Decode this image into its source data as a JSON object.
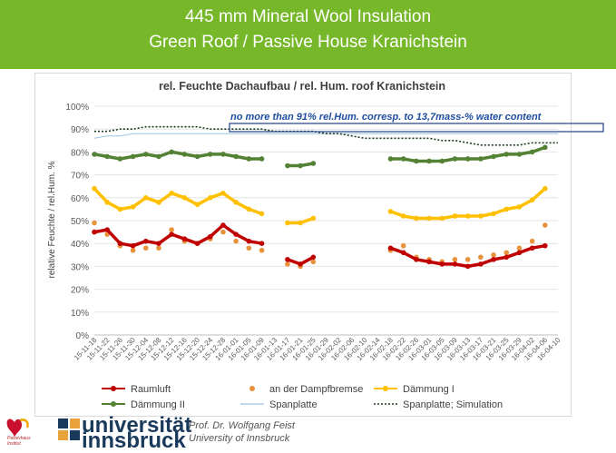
{
  "banner": {
    "line1": "445 mm Mineral Wool Insulation",
    "line2": "Green Roof / Passive House Kranichstein"
  },
  "footer": {
    "uni_line1": "universität",
    "uni_line2": "innsbruck",
    "author": "Prof. Dr. Wolfgang Feist",
    "affiliation": "University of Innsbruck",
    "logo_caption_1": "Passivhaus",
    "logo_caption_2": "Institut"
  },
  "chart_data": {
    "type": "line",
    "title": "rel. Feuchte Dachaufbau / rel. Hum. roof Kranichstein",
    "ylabel": "relative Feuchte / rel.Hum. %",
    "xlabel": "",
    "ylim": [
      0,
      100
    ],
    "yticks": [
      "0%",
      "10%",
      "20%",
      "30%",
      "40%",
      "50%",
      "60%",
      "70%",
      "80%",
      "90%",
      "100%"
    ],
    "grid": true,
    "legend_position": "bottom",
    "annotation": "no more than 91% rel.Hum. corresp. to 13,7mass-% water content",
    "x_dates": [
      "15-11-18",
      "15-11-22",
      "15-11-26",
      "15-11-30",
      "15-12-04",
      "15-12-08",
      "15-12-12",
      "15-12-16",
      "15-12-20",
      "15-12-24",
      "15-12-28",
      "16-01-01",
      "16-01-05",
      "16-01-09",
      "16-01-13",
      "16-01-17",
      "16-01-21",
      "16-01-25",
      "16-01-29",
      "16-02-02",
      "16-02-06",
      "16-02-10",
      "16-02-14",
      "16-02-18",
      "16-02-22",
      "16-02-26",
      "16-03-01",
      "16-03-05",
      "16-03-09",
      "16-03-13",
      "16-03-17",
      "16-03-21",
      "16-03-25",
      "16-03-29",
      "16-04-02",
      "16-04-06",
      "16-04-10"
    ],
    "series": [
      {
        "name": "Raumluft",
        "color": "#c00000",
        "style": "solid-markers",
        "values": [
          45,
          46,
          40,
          39,
          41,
          40,
          44,
          42,
          40,
          43,
          48,
          44,
          41,
          40,
          null,
          33,
          31,
          34,
          null,
          null,
          null,
          null,
          null,
          38,
          36,
          33,
          32,
          31,
          31,
          30,
          31,
          33,
          34,
          36,
          38,
          39,
          null
        ]
      },
      {
        "name": "an der Dampfbremse",
        "color": "#e8923c",
        "style": "markers-only",
        "values": [
          49,
          44,
          39,
          37,
          38,
          38,
          46,
          41,
          40,
          42,
          45,
          41,
          38,
          37,
          null,
          31,
          30,
          32,
          null,
          null,
          null,
          null,
          null,
          37,
          39,
          34,
          33,
          32,
          33,
          33,
          34,
          35,
          36,
          38,
          41,
          48,
          null
        ]
      },
      {
        "name": "Dämmung I",
        "color": "#ffc000",
        "style": "solid-markers",
        "values": [
          64,
          58,
          55,
          56,
          60,
          58,
          62,
          60,
          57,
          60,
          62,
          58,
          55,
          53,
          null,
          49,
          49,
          51,
          null,
          null,
          null,
          null,
          null,
          54,
          52,
          51,
          51,
          51,
          52,
          52,
          52,
          53,
          55,
          56,
          59,
          64,
          null
        ]
      },
      {
        "name": "Dämmung II",
        "color": "#548235",
        "style": "solid-markers",
        "values": [
          79,
          78,
          77,
          78,
          79,
          78,
          80,
          79,
          78,
          79,
          79,
          78,
          77,
          77,
          null,
          74,
          74,
          75,
          null,
          null,
          null,
          null,
          null,
          77,
          77,
          76,
          76,
          76,
          77,
          77,
          77,
          78,
          79,
          79,
          80,
          82,
          null
        ]
      },
      {
        "name": "Spanplatte",
        "color": "#9dc3e6",
        "style": "solid-thin",
        "values": [
          86,
          87,
          87,
          88,
          88,
          88,
          88,
          88,
          88,
          88,
          88,
          88,
          88,
          88,
          88,
          88,
          88,
          88,
          88,
          88,
          88,
          88,
          88,
          88,
          88,
          88,
          88,
          88,
          88,
          88,
          88,
          88,
          88,
          88,
          88,
          88,
          88
        ]
      },
      {
        "name": "Spanplatte; Simulation",
        "color": "#1f3d1f",
        "style": "dotted",
        "values": [
          89,
          89,
          90,
          90,
          91,
          91,
          91,
          91,
          91,
          90,
          90,
          90,
          90,
          90,
          89,
          89,
          89,
          89,
          88,
          88,
          87,
          86,
          86,
          86,
          86,
          86,
          86,
          85,
          85,
          84,
          83,
          83,
          83,
          83,
          84,
          84,
          84
        ]
      }
    ]
  }
}
